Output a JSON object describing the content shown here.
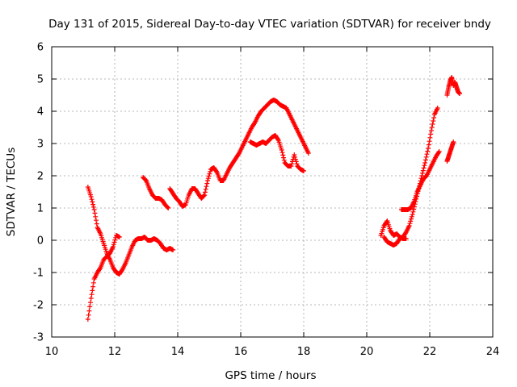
{
  "chart_data": {
    "type": "scatter",
    "title": "Day 131 of 2015, Sidereal Day-to-day VTEC variation (SDTVAR) for receiver bndy",
    "xlabel": "GPS time / hours",
    "ylabel": "SDTVAR / TECUs",
    "xlim": [
      10,
      24
    ],
    "ylim": [
      -3,
      6
    ],
    "xticks": [
      10,
      12,
      14,
      16,
      18,
      20,
      22,
      24
    ],
    "yticks": [
      -3,
      -2,
      -1,
      0,
      1,
      2,
      3,
      4,
      5,
      6
    ],
    "xtick_labels": [
      "10",
      "12",
      "14",
      "16",
      "18",
      "20",
      "22",
      "24"
    ],
    "ytick_labels": [
      "-3",
      "-2",
      "-1",
      "0",
      "1",
      "2",
      "3",
      "4",
      "5",
      "6"
    ],
    "grid": true,
    "marker": "+",
    "color": "#ff0000",
    "segments": [
      {
        "x": [
          11.15,
          11.25,
          11.35,
          11.45,
          11.55,
          11.65,
          11.75,
          11.85,
          11.95,
          12.05,
          12.15,
          12.25,
          12.35,
          12.45,
          12.55,
          12.65,
          12.75
        ],
        "y": [
          1.65,
          1.35,
          0.95,
          0.4,
          0.2,
          -0.1,
          -0.4,
          -0.6,
          -0.85,
          -1.0,
          -1.05,
          -0.9,
          -0.7,
          -0.45,
          -0.2,
          0.0,
          0.05
        ]
      },
      {
        "x": [
          11.15,
          11.25,
          11.35,
          11.45,
          11.55,
          11.65,
          11.75,
          11.85,
          11.95,
          12.05,
          12.15
        ],
        "y": [
          -2.45,
          -1.8,
          -1.2,
          -1.0,
          -0.85,
          -0.6,
          -0.5,
          -0.4,
          -0.2,
          0.15,
          0.1
        ]
      },
      {
        "x": [
          12.75,
          12.85,
          12.95,
          13.05,
          13.15,
          13.25,
          13.35,
          13.45,
          13.55,
          13.65,
          13.75,
          13.85
        ],
        "y": [
          0.05,
          0.05,
          0.1,
          0.0,
          0.0,
          0.05,
          0.0,
          -0.1,
          -0.25,
          -0.3,
          -0.25,
          -0.3
        ]
      },
      {
        "x": [
          12.9,
          13.0,
          13.1,
          13.2,
          13.3,
          13.4,
          13.5,
          13.6,
          13.7
        ],
        "y": [
          1.95,
          1.85,
          1.6,
          1.4,
          1.3,
          1.3,
          1.25,
          1.1,
          1.0
        ]
      },
      {
        "x": [
          13.75,
          13.85,
          13.95,
          14.05,
          14.15,
          14.25,
          14.35,
          14.45,
          14.55,
          14.65,
          14.75,
          14.85,
          14.95,
          15.05,
          15.15,
          15.25,
          15.35,
          15.45,
          15.55,
          15.65,
          15.75,
          15.85,
          15.95,
          16.05,
          16.15,
          16.25,
          16.35,
          16.45,
          16.55,
          16.65,
          16.75,
          16.85,
          16.95,
          17.05,
          17.15,
          17.25,
          17.35,
          17.45,
          17.55,
          17.65,
          17.75,
          17.85,
          17.95,
          18.05,
          18.15
        ],
        "y": [
          1.6,
          1.45,
          1.3,
          1.2,
          1.05,
          1.1,
          1.4,
          1.6,
          1.6,
          1.45,
          1.3,
          1.4,
          1.85,
          2.2,
          2.25,
          2.1,
          1.85,
          1.85,
          2.05,
          2.25,
          2.4,
          2.55,
          2.7,
          2.9,
          3.1,
          3.3,
          3.5,
          3.65,
          3.85,
          4.0,
          4.1,
          4.2,
          4.3,
          4.35,
          4.3,
          4.2,
          4.15,
          4.1,
          3.9,
          3.7,
          3.5,
          3.3,
          3.1,
          2.9,
          2.7
        ]
      },
      {
        "x": [
          16.3,
          16.4,
          16.5,
          16.6,
          16.7,
          16.8,
          16.9,
          17.0,
          17.1,
          17.2,
          17.3,
          17.4,
          17.5,
          17.6,
          17.7,
          17.8,
          17.9,
          18.0
        ],
        "y": [
          3.05,
          3.0,
          2.95,
          3.0,
          3.05,
          3.0,
          3.1,
          3.2,
          3.25,
          3.1,
          2.8,
          2.4,
          2.3,
          2.3,
          2.65,
          2.3,
          2.2,
          2.15
        ]
      },
      {
        "x": [
          20.45,
          20.55,
          20.65,
          20.75,
          20.85,
          20.95,
          21.05,
          21.15,
          21.25
        ],
        "y": [
          0.15,
          0.45,
          0.6,
          0.3,
          0.15,
          0.2,
          0.1,
          0.05,
          0.05
        ]
      },
      {
        "x": [
          20.55,
          20.65,
          20.75,
          20.85,
          20.95,
          21.05,
          21.15,
          21.25,
          21.35,
          21.45,
          21.55,
          21.65,
          21.75,
          21.85,
          21.95,
          22.05,
          22.15,
          22.25
        ],
        "y": [
          0.1,
          -0.05,
          -0.1,
          -0.15,
          -0.1,
          0.05,
          0.1,
          0.25,
          0.45,
          0.8,
          1.2,
          1.6,
          2.0,
          2.4,
          2.85,
          3.4,
          3.9,
          4.1
        ]
      },
      {
        "x": [
          21.1,
          21.2,
          21.3,
          21.4,
          21.5,
          21.6,
          21.7,
          21.8,
          21.9,
          22.0,
          22.1,
          22.2,
          22.3
        ],
        "y": [
          0.95,
          0.95,
          0.95,
          1.0,
          1.2,
          1.5,
          1.7,
          1.9,
          2.0,
          2.2,
          2.4,
          2.6,
          2.75
        ]
      },
      {
        "x": [
          22.55,
          22.6,
          22.65,
          22.7,
          22.75
        ],
        "y": [
          2.45,
          2.6,
          2.75,
          2.9,
          3.05
        ]
      },
      {
        "x": [
          22.55,
          22.6,
          22.65,
          22.7,
          22.75,
          22.8,
          22.85,
          22.9,
          22.95
        ],
        "y": [
          4.5,
          4.75,
          4.95,
          5.05,
          4.8,
          4.9,
          4.75,
          4.6,
          4.55
        ]
      }
    ]
  }
}
